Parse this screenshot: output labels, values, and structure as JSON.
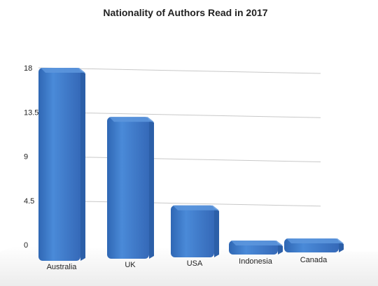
{
  "chart_data": {
    "type": "bar",
    "title": "Nationality of Authors Read in 2017",
    "categories": [
      "Australia",
      "UK",
      "USA",
      "Indonesia",
      "Canada"
    ],
    "values": [
      18,
      13,
      4,
      0,
      0
    ],
    "yticks": [
      "0",
      "4.5",
      "9",
      "13.5",
      "18"
    ],
    "ylim": [
      0,
      18
    ],
    "grid": true,
    "legend": "none",
    "colors": {
      "bar": "#3f7fcf",
      "bar_dark": "#2c5fa8",
      "bar_top": "#5d97dd",
      "grid": "#c8c8c8"
    }
  }
}
